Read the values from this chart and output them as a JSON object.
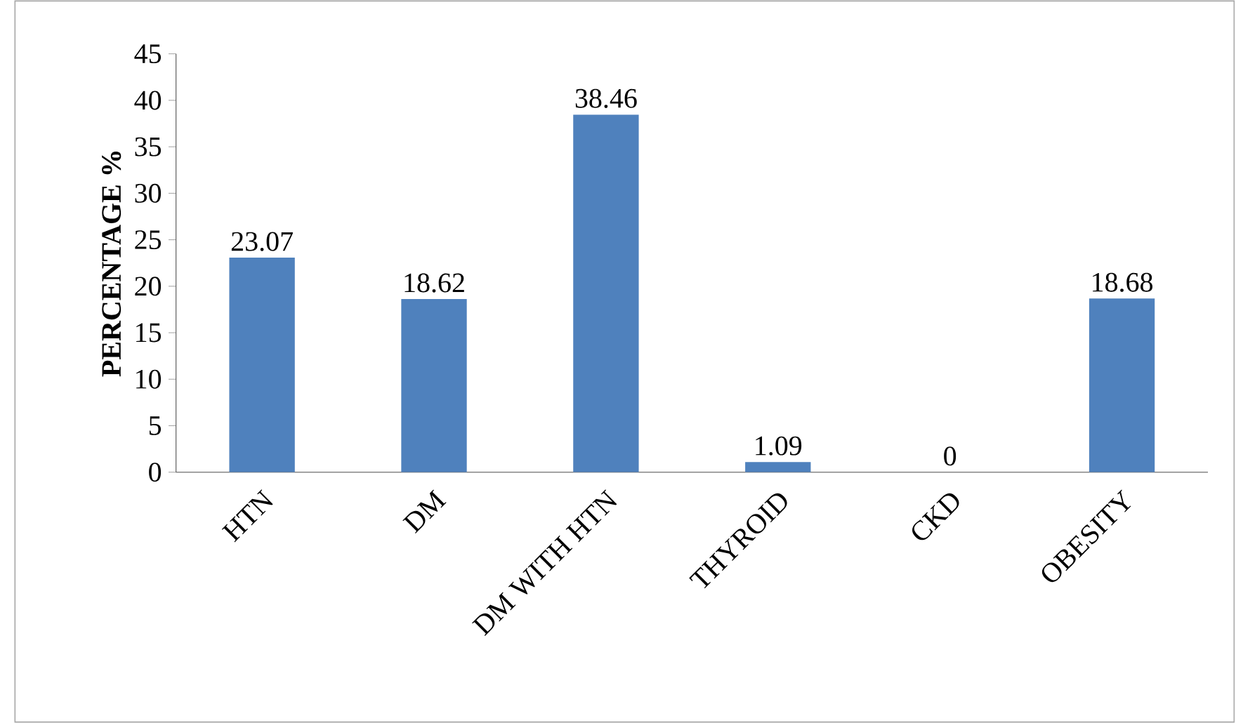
{
  "chart_data": {
    "type": "bar",
    "ylabel": "PERCENTAGE %",
    "categories": [
      "HTN",
      "DM",
      "DM WITH HTN",
      "THYROID",
      "CKD",
      "OBESITY"
    ],
    "values": [
      23.07,
      18.62,
      38.46,
      1.09,
      0,
      18.68
    ],
    "color": "#4f81bd",
    "ylim": [
      0,
      45
    ],
    "yticks": [
      0,
      5,
      10,
      15,
      20,
      25,
      30,
      35,
      40,
      45
    ],
    "data_labels": true
  }
}
